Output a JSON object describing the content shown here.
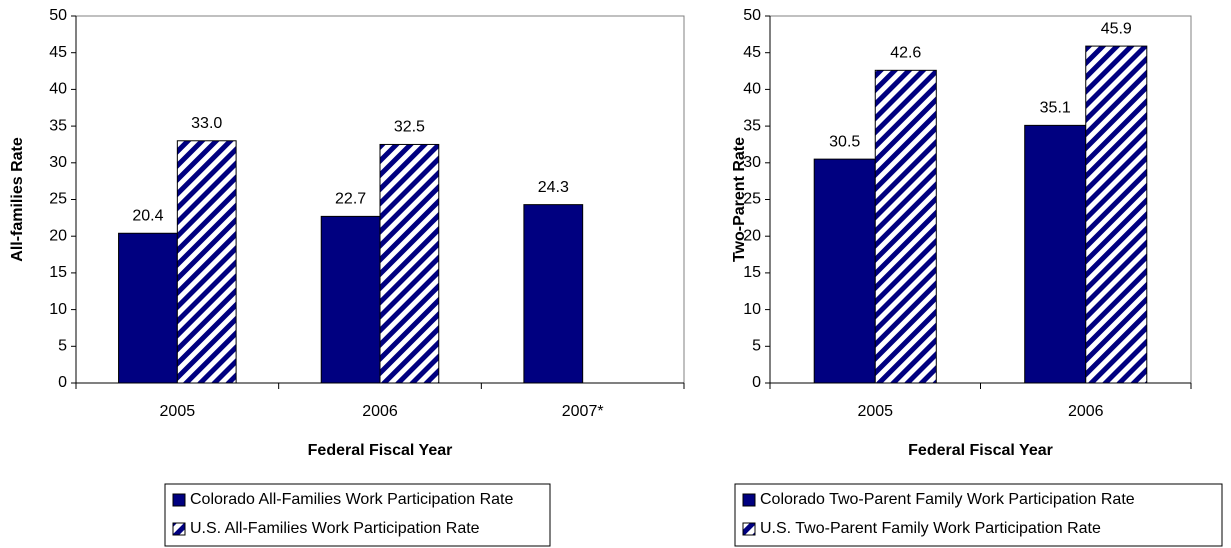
{
  "chart_data": [
    {
      "type": "bar",
      "x_label": "Federal Fiscal Year",
      "y_label": "All-families Rate",
      "categories": [
        "2005",
        "2006",
        "2007*"
      ],
      "series": [
        {
          "name": "Colorado All-Families Work Participation Rate",
          "color": "#000080",
          "fill": "solid",
          "values": [
            20.4,
            22.7,
            24.3
          ],
          "value_labels": [
            "20.4",
            "22.7",
            "24.3"
          ]
        },
        {
          "name": "U.S. All-Families Work Participation Rate",
          "color": "#000080",
          "fill": "hatch",
          "values": [
            33.0,
            32.5,
            null
          ],
          "value_labels": [
            "33.0",
            "32.5",
            null
          ]
        }
      ],
      "ylim": [
        0,
        50
      ],
      "yticks": [
        0,
        5,
        10,
        15,
        20,
        25,
        30,
        35,
        40,
        45,
        50
      ],
      "grid": false,
      "legend": "bottom"
    },
    {
      "type": "bar",
      "x_label": "Federal Fiscal Year",
      "y_label": "Two-Parent Rate",
      "categories": [
        "2005",
        "2006"
      ],
      "series": [
        {
          "name": "Colorado Two-Parent Family Work Participation Rate",
          "color": "#000080",
          "fill": "solid",
          "values": [
            30.5,
            35.1
          ],
          "value_labels": [
            "30.5",
            "35.1"
          ]
        },
        {
          "name": "U.S. Two-Parent Family Work Participation Rate",
          "color": "#000080",
          "fill": "hatch",
          "values": [
            42.6,
            45.9
          ],
          "value_labels": [
            "42.6",
            "45.9"
          ]
        }
      ],
      "ylim": [
        0,
        50
      ],
      "yticks": [
        0,
        5,
        10,
        15,
        20,
        25,
        30,
        35,
        40,
        45,
        50
      ],
      "grid": false,
      "legend": "bottom"
    }
  ]
}
